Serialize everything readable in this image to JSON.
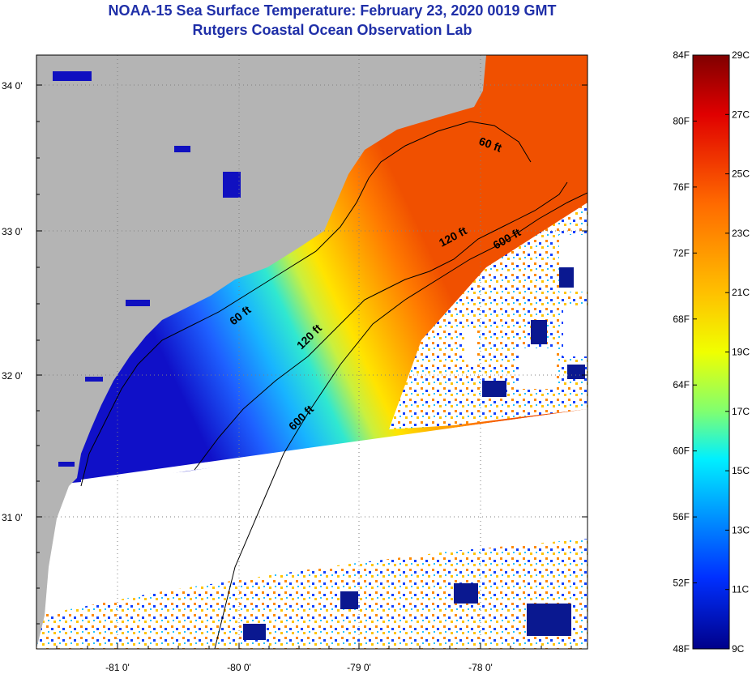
{
  "title": {
    "line1": "NOAA-15 Sea Surface Temperature:  February 23, 2020 0019 GMT",
    "line2": "Rutgers Coastal Ocean Observation Lab"
  },
  "axes": {
    "lat_labels": [
      "34 0'",
      "33 0'",
      "32 0'",
      "31 0'"
    ],
    "lon_labels": [
      "-81 0'",
      "-80 0'",
      "-79 0'",
      "-78 0'"
    ]
  },
  "contours": {
    "labels": [
      "60 ft",
      "120 ft",
      "600 ft",
      "60 ft",
      "120 ft",
      "600 ft"
    ]
  },
  "colorbar": {
    "fahrenheit": [
      "84F",
      "80F",
      "76F",
      "72F",
      "68F",
      "64F",
      "60F",
      "56F",
      "52F",
      "48F"
    ],
    "celsius": [
      "29C",
      "27C",
      "25C",
      "23C",
      "21C",
      "19C",
      "17C",
      "15C",
      "13C",
      "11C",
      "9C"
    ]
  },
  "colors": {
    "land": "#b4b4b4",
    "title": "#1f2fa8",
    "no_data": "#ffffff"
  }
}
